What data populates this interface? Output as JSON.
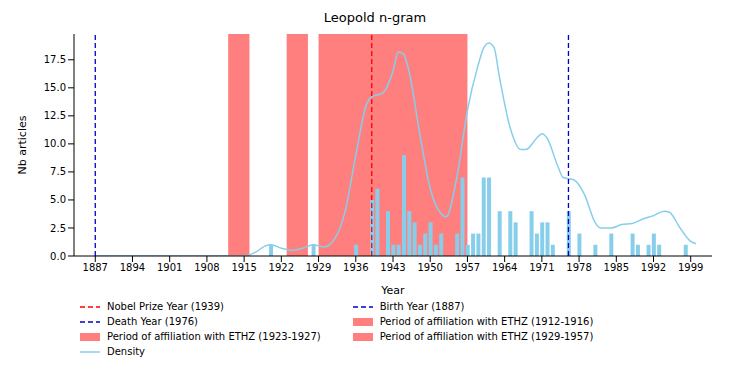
{
  "chart_data": {
    "type": "bar",
    "title": "Leopold n-gram",
    "xlabel": "Year",
    "ylabel": "Nb articles",
    "x": [
      1920,
      1928,
      1936,
      1939,
      1940,
      1942,
      1943,
      1944,
      1945,
      1946,
      1947,
      1948,
      1949,
      1950,
      1951,
      1952,
      1955,
      1956,
      1957,
      1958,
      1959,
      1960,
      1961,
      1963,
      1965,
      1966,
      1969,
      1970,
      1971,
      1972,
      1973,
      1976,
      1978,
      1981,
      1984,
      1988,
      1989,
      1991,
      1992,
      1993,
      1998
    ],
    "values": [
      1,
      1,
      1,
      5,
      6,
      4,
      1,
      1,
      9,
      4,
      3,
      1,
      2,
      3,
      1,
      2,
      2,
      7,
      1,
      2,
      2,
      7,
      7,
      4,
      4,
      3,
      4,
      2,
      3,
      3,
      1,
      4,
      2,
      1,
      2,
      2,
      1,
      1,
      2,
      1,
      1
    ],
    "color": "#87ceeb",
    "density": {
      "name": "Density",
      "type": "line",
      "color": "#87ceeb",
      "x": [
        1887,
        1900,
        1910,
        1915,
        1917,
        1919,
        1920,
        1922,
        1924,
        1926,
        1928,
        1930,
        1932,
        1934,
        1936,
        1938,
        1939,
        1941,
        1943,
        1944,
        1945,
        1946,
        1948,
        1950,
        1952,
        1953,
        1955,
        1957,
        1959,
        1960,
        1961,
        1962,
        1963,
        1965,
        1967,
        1968,
        1970,
        1971,
        1972,
        1974,
        1975,
        1977,
        1979,
        1981,
        1982,
        1984,
        1986,
        1988,
        1990,
        1992,
        1994,
        1995,
        1997,
        1999,
        2000
      ],
      "values": [
        0,
        0,
        0,
        0,
        0.3,
        0.9,
        1.0,
        0.7,
        0.5,
        0.7,
        1.0,
        0.8,
        1.5,
        4,
        9,
        13.5,
        14.2,
        14.5,
        16.5,
        18.2,
        18,
        16.5,
        11,
        6,
        3.8,
        3.5,
        7,
        13,
        17,
        18.5,
        19,
        18.6,
        16,
        11.5,
        9.5,
        9.5,
        10.5,
        10.9,
        10.5,
        8,
        7,
        6.8,
        5.5,
        3,
        2.5,
        2.5,
        2.8,
        2.9,
        3.3,
        3.6,
        4,
        3.9,
        2.5,
        1.3,
        1.1
      ]
    },
    "vlines": [
      {
        "name": "Nobel Prize Year (1939)",
        "x": 1939,
        "color": "#ff0000",
        "line_style": "dashed"
      },
      {
        "name": "Birth Year (1887)",
        "x": 1887,
        "color": "#0000cc",
        "line_style": "dashed"
      },
      {
        "name": "Death Year (1976)",
        "x": 1976,
        "color": "#0000cc",
        "line_style": "dashed"
      }
    ],
    "periods": [
      {
        "name": "Period of affiliation with ETHZ (1912-1916)",
        "start": 1912,
        "end": 1916,
        "color": "#ff0000"
      },
      {
        "name": "Period of affiliation with ETHZ (1923-1927)",
        "start": 1923,
        "end": 1927,
        "color": "#ff0000"
      },
      {
        "name": "Period of affiliation with ETHZ (1929-1957)",
        "start": 1929,
        "end": 1957,
        "color": "#ff0000"
      }
    ],
    "xlim": [
      1883,
      2003
    ],
    "xticks": [
      1887,
      1894,
      1901,
      1908,
      1915,
      1922,
      1929,
      1936,
      1943,
      1950,
      1957,
      1964,
      1971,
      1978,
      1985,
      1992,
      1999
    ],
    "ylim": [
      0,
      19.8
    ],
    "yticks": [
      {
        "value": 0,
        "label": "0.0"
      },
      2.5,
      {
        "value": 5,
        "label": "5.0"
      },
      7.5,
      {
        "value": 10,
        "label": "10.0"
      },
      12.5,
      {
        "value": 15,
        "label": "15.0"
      },
      17.5
    ],
    "legend": "bottom",
    "grid": false
  }
}
